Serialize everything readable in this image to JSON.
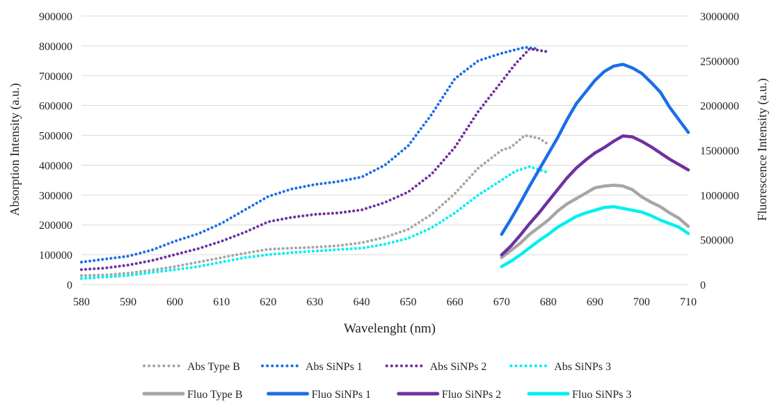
{
  "chart_data": {
    "type": "line",
    "title": "",
    "xlabel": "Wavelenght (nm)",
    "ylabel_left": "Absorption Intensity (a.u.)",
    "ylabel_right": "Fluorescence Intensity (a.u.)",
    "xlim": [
      580,
      710
    ],
    "ylim_left": [
      0,
      900000
    ],
    "ylim_right": [
      0,
      3000000
    ],
    "x_ticks": [
      "580",
      "590",
      "600",
      "610",
      "620",
      "630",
      "640",
      "650",
      "660",
      "670",
      "680",
      "690",
      "700",
      "710"
    ],
    "y_left_ticks": [
      "0",
      "100000",
      "200000",
      "300000",
      "400000",
      "500000",
      "600000",
      "700000",
      "800000",
      "900000"
    ],
    "y_right_ticks": [
      "0",
      "500000",
      "1000000",
      "1500000",
      "2000000",
      "2500000",
      "3000000"
    ],
    "grid": true,
    "legend_position": "bottom",
    "colors": {
      "type_b": "#a6a6a6",
      "sinps1": "#1a6ee8",
      "sinps2": "#7030a0",
      "sinps3": "#00f0f0"
    },
    "series": [
      {
        "name": "Abs Type B",
        "axis": "left",
        "style": "dotted",
        "color_key": "type_b",
        "x": [
          580,
          585,
          590,
          595,
          600,
          605,
          610,
          615,
          620,
          625,
          630,
          635,
          640,
          645,
          650,
          655,
          660,
          665,
          670,
          672,
          675,
          678,
          680
        ],
        "y": [
          30000,
          32000,
          38000,
          48000,
          60000,
          75000,
          90000,
          105000,
          118000,
          122000,
          125000,
          130000,
          140000,
          158000,
          185000,
          235000,
          305000,
          390000,
          450000,
          460000,
          500000,
          490000,
          470000
        ]
      },
      {
        "name": "Abs SiNPs 1",
        "axis": "left",
        "style": "dotted",
        "color_key": "sinps1",
        "x": [
          580,
          585,
          590,
          595,
          600,
          605,
          610,
          615,
          620,
          625,
          630,
          635,
          640,
          645,
          650,
          655,
          660,
          665,
          670,
          675,
          678
        ],
        "y": [
          75000,
          85000,
          95000,
          115000,
          145000,
          170000,
          205000,
          250000,
          295000,
          320000,
          335000,
          345000,
          360000,
          400000,
          465000,
          570000,
          690000,
          750000,
          775000,
          795000,
          790000
        ]
      },
      {
        "name": "Abs SiNPs 2",
        "axis": "left",
        "style": "dotted",
        "color_key": "sinps2",
        "x": [
          580,
          585,
          590,
          595,
          600,
          605,
          610,
          615,
          620,
          625,
          630,
          635,
          640,
          645,
          650,
          655,
          660,
          665,
          670,
          673,
          676,
          680
        ],
        "y": [
          50000,
          55000,
          65000,
          80000,
          100000,
          120000,
          145000,
          175000,
          210000,
          225000,
          235000,
          240000,
          250000,
          275000,
          310000,
          370000,
          460000,
          580000,
          680000,
          740000,
          790000,
          780000
        ]
      },
      {
        "name": "Abs SiNPs 3",
        "axis": "left",
        "style": "dotted",
        "color_key": "sinps3",
        "x": [
          580,
          585,
          590,
          595,
          600,
          605,
          610,
          615,
          620,
          625,
          630,
          635,
          640,
          645,
          650,
          655,
          660,
          665,
          670,
          673,
          676,
          680
        ],
        "y": [
          20000,
          25000,
          30000,
          40000,
          50000,
          60000,
          75000,
          90000,
          100000,
          107000,
          112000,
          117000,
          122000,
          135000,
          155000,
          190000,
          240000,
          300000,
          350000,
          380000,
          395000,
          375000
        ]
      },
      {
        "name": "Fluo Type B",
        "axis": "right",
        "style": "solid",
        "color_key": "type_b",
        "x": [
          670,
          672,
          674,
          676,
          678,
          680,
          682,
          684,
          686,
          688,
          690,
          692,
          694,
          696,
          698,
          700,
          702,
          704,
          706,
          708,
          710
        ],
        "y": [
          300000,
          380000,
          460000,
          560000,
          640000,
          720000,
          820000,
          900000,
          960000,
          1020000,
          1080000,
          1100000,
          1110000,
          1100000,
          1060000,
          980000,
          920000,
          870000,
          800000,
          740000,
          650000
        ]
      },
      {
        "name": "Fluo SiNPs 1",
        "axis": "right",
        "style": "solid",
        "color_key": "sinps1",
        "x": [
          670,
          672,
          674,
          676,
          678,
          680,
          682,
          684,
          686,
          688,
          690,
          692,
          694,
          696,
          698,
          700,
          702,
          704,
          706,
          708,
          710
        ],
        "y": [
          560000,
          730000,
          910000,
          1100000,
          1280000,
          1460000,
          1640000,
          1840000,
          2020000,
          2150000,
          2280000,
          2380000,
          2440000,
          2460000,
          2420000,
          2360000,
          2260000,
          2150000,
          1980000,
          1840000,
          1700000
        ]
      },
      {
        "name": "Fluo SiNPs 2",
        "axis": "right",
        "style": "solid",
        "color_key": "sinps2",
        "x": [
          670,
          672,
          674,
          676,
          678,
          680,
          682,
          684,
          686,
          688,
          690,
          692,
          694,
          696,
          698,
          700,
          702,
          704,
          706,
          708,
          710
        ],
        "y": [
          330000,
          430000,
          550000,
          680000,
          800000,
          930000,
          1060000,
          1190000,
          1300000,
          1390000,
          1470000,
          1530000,
          1600000,
          1660000,
          1650000,
          1600000,
          1540000,
          1470000,
          1400000,
          1340000,
          1280000
        ]
      },
      {
        "name": "Fluo SiNPs 3",
        "axis": "right",
        "style": "solid",
        "color_key": "sinps3",
        "x": [
          670,
          672,
          674,
          676,
          678,
          680,
          682,
          684,
          686,
          688,
          690,
          692,
          694,
          696,
          698,
          700,
          702,
          704,
          706,
          708,
          710
        ],
        "y": [
          200000,
          260000,
          330000,
          410000,
          490000,
          560000,
          640000,
          700000,
          760000,
          800000,
          830000,
          860000,
          870000,
          850000,
          830000,
          810000,
          770000,
          720000,
          680000,
          640000,
          570000
        ]
      }
    ]
  }
}
